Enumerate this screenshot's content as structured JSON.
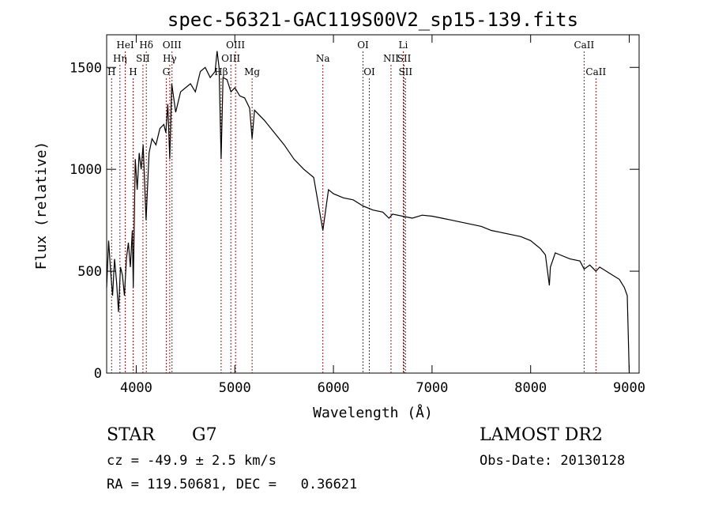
{
  "chart_data": {
    "type": "line",
    "title": "spec-56321-GAC119S00V2_sp15-139.fits",
    "xlabel": "Wavelength (Å)",
    "ylabel": "Flux (relative)",
    "xlim": [
      3700,
      9100
    ],
    "ylim": [
      0,
      1660
    ],
    "x_ticks": [
      4000,
      5000,
      6000,
      7000,
      8000,
      9000
    ],
    "x_tick_labels": [
      "4000",
      "5000",
      "6000",
      "7000",
      "8000",
      "9000"
    ],
    "y_ticks": [
      0,
      500,
      1000,
      1500
    ],
    "y_tick_labels": [
      "0",
      "500",
      "1000",
      "1500"
    ],
    "grid": false,
    "series": [
      {
        "x": [
          3700,
          3720,
          3740,
          3760,
          3780,
          3800,
          3820,
          3840,
          3860,
          3880,
          3900,
          3920,
          3940,
          3960,
          3970,
          3990,
          4010,
          4030,
          4050,
          4070,
          4100,
          4130,
          4160,
          4200,
          4240,
          4280,
          4300,
          4320,
          4340,
          4360,
          4400,
          4450,
          4500,
          4550,
          4600,
          4650,
          4700,
          4750,
          4800,
          4820,
          4840,
          4861,
          4880,
          4920,
          4960,
          5000,
          5050,
          5100,
          5150,
          5175,
          5200,
          5300,
          5400,
          5500,
          5600,
          5700,
          5800,
          5893,
          5950,
          6000,
          6100,
          6200,
          6300,
          6400,
          6500,
          6563,
          6600,
          6700,
          6800,
          6900,
          7000,
          7100,
          7200,
          7300,
          7400,
          7500,
          7600,
          7700,
          7800,
          7900,
          8000,
          8100,
          8150,
          8190,
          8200,
          8250,
          8300,
          8400,
          8500,
          8542,
          8600,
          8662,
          8700,
          8800,
          8900,
          8950,
          8980,
          9000
        ],
        "y": [
          420,
          650,
          500,
          380,
          560,
          450,
          300,
          520,
          480,
          380,
          560,
          640,
          520,
          700,
          420,
          1050,
          900,
          1080,
          1000,
          1120,
          750,
          1080,
          1150,
          1120,
          1200,
          1220,
          1180,
          1320,
          1050,
          1420,
          1280,
          1380,
          1400,
          1420,
          1380,
          1480,
          1500,
          1450,
          1480,
          1580,
          1500,
          1050,
          1450,
          1440,
          1380,
          1400,
          1360,
          1350,
          1300,
          1150,
          1290,
          1240,
          1180,
          1120,
          1050,
          1000,
          960,
          700,
          900,
          880,
          860,
          850,
          820,
          800,
          790,
          760,
          780,
          770,
          760,
          775,
          770,
          760,
          750,
          740,
          730,
          720,
          700,
          690,
          680,
          670,
          650,
          610,
          580,
          430,
          520,
          590,
          580,
          560,
          550,
          510,
          530,
          500,
          520,
          490,
          460,
          420,
          380,
          0
        ]
      }
    ],
    "line_markers": [
      {
        "label": "HeI",
        "wavelength": 3889,
        "row": 0
      },
      {
        "label": "Hη",
        "wavelength": 3835,
        "row": 1
      },
      {
        "label": "H",
        "wavelength": 3750,
        "row": 2
      },
      {
        "label": "H",
        "wavelength": 3968,
        "row": 2
      },
      {
        "label": "Hδ",
        "wavelength": 4102,
        "row": 0
      },
      {
        "label": "SII",
        "wavelength": 4068,
        "row": 1
      },
      {
        "label": "OIII",
        "wavelength": 4363,
        "row": 0
      },
      {
        "label": "Hγ",
        "wavelength": 4340,
        "row": 1
      },
      {
        "label": "G",
        "wavelength": 4304,
        "row": 2
      },
      {
        "label": "Hβ",
        "wavelength": 4861,
        "row": 2
      },
      {
        "label": "OIII",
        "wavelength": 5007,
        "row": 0
      },
      {
        "label": "OIII",
        "wavelength": 4959,
        "row": 1
      },
      {
        "label": "Mg",
        "wavelength": 5175,
        "row": 2
      },
      {
        "label": "Na",
        "wavelength": 5893,
        "row": 1
      },
      {
        "label": "OI",
        "wavelength": 6300,
        "row": 0
      },
      {
        "label": "OI",
        "wavelength": 6364,
        "row": 2
      },
      {
        "label": "Li",
        "wavelength": 6708,
        "row": 0
      },
      {
        "label": "NII",
        "wavelength": 6584,
        "row": 1
      },
      {
        "label": "SII",
        "wavelength": 6717,
        "row": 1
      },
      {
        "label": "SII",
        "wavelength": 6731,
        "row": 2
      },
      {
        "label": "CaII",
        "wavelength": 8542,
        "row": 0
      },
      {
        "label": "CaII",
        "wavelength": 8662,
        "row": 2
      }
    ]
  },
  "info": {
    "class_label": "STAR",
    "subclass": "G7",
    "survey": "LAMOST DR2",
    "cz": "cz = -49.9 ± 2.5 km/s",
    "obs_date": "Obs-Date: 20130128",
    "coords": "RA = 119.50681, DEC =   0.36621"
  }
}
